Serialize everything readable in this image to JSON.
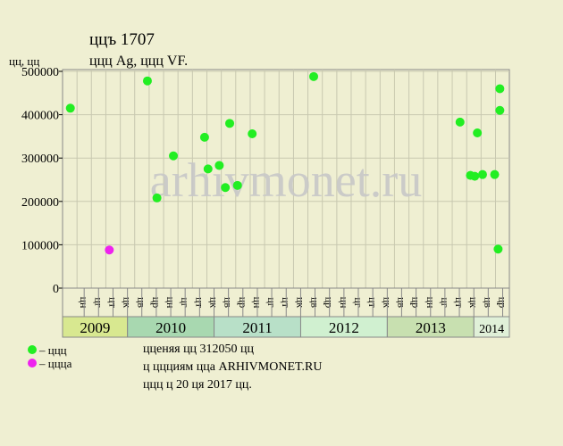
{
  "chart_data": {
    "type": "scatter",
    "title": "ццъ 1707",
    "subtitle": "ццц Ag, ццц VF.",
    "y_label": "цц, цц",
    "watermark": "arhivmonet.ru",
    "notes": [
      "цценяя цц 312050 цц",
      "ц ццциям цца ARHIVMONET.RU",
      "ццц ц 20 ця 2017 цц."
    ],
    "xlim": [
      2009.25,
      2014.41
    ],
    "ylim": [
      0,
      500000
    ],
    "yticks": [
      0,
      100000,
      200000,
      300000,
      400000,
      500000
    ],
    "years": [
      2009,
      2010,
      2011,
      2012,
      2013,
      2014
    ],
    "year_colors": [
      "#d8e890",
      "#a8d8b0",
      "#b8e0c8",
      "#d0f0d0",
      "#c8e0b0",
      "#e0f0d8"
    ],
    "xticks": [
      {
        "value": 2009.417,
        "label": "цн"
      },
      {
        "value": 2009.583,
        "label": "цг"
      },
      {
        "value": 2009.75,
        "label": "цт"
      },
      {
        "value": 2009.917,
        "label": "цк"
      },
      {
        "value": 2010.083,
        "label": "цв"
      },
      {
        "value": 2010.25,
        "label": "цр"
      },
      {
        "value": 2010.417,
        "label": "цн"
      },
      {
        "value": 2010.583,
        "label": "цг"
      },
      {
        "value": 2010.75,
        "label": "цт"
      },
      {
        "value": 2010.917,
        "label": "цк"
      },
      {
        "value": 2011.083,
        "label": "цв"
      },
      {
        "value": 2011.25,
        "label": "цр"
      },
      {
        "value": 2011.417,
        "label": "цн"
      },
      {
        "value": 2011.583,
        "label": "цг"
      },
      {
        "value": 2011.75,
        "label": "цт"
      },
      {
        "value": 2011.917,
        "label": "цк"
      },
      {
        "value": 2012.083,
        "label": "цв"
      },
      {
        "value": 2012.25,
        "label": "цр"
      },
      {
        "value": 2012.417,
        "label": "цн"
      },
      {
        "value": 2012.583,
        "label": "цг"
      },
      {
        "value": 2012.75,
        "label": "цт"
      },
      {
        "value": 2012.917,
        "label": "цк"
      },
      {
        "value": 2013.083,
        "label": "цв"
      },
      {
        "value": 2013.25,
        "label": "цр"
      },
      {
        "value": 2013.417,
        "label": "цн"
      },
      {
        "value": 2013.583,
        "label": "цг"
      },
      {
        "value": 2013.75,
        "label": "цт"
      },
      {
        "value": 2013.917,
        "label": "цк"
      },
      {
        "value": 2014.083,
        "label": "цв"
      },
      {
        "value": 2014.25,
        "label": "цр"
      }
    ],
    "grid": true,
    "series": [
      {
        "name": "– ццц",
        "color": "#22ee22",
        "x": [
          2009.34,
          2010.23,
          2010.34,
          2010.53,
          2010.89,
          2010.93,
          2011.06,
          2011.13,
          2011.18,
          2011.27,
          2011.44,
          2012.15,
          2013.84,
          2013.96,
          2014.01,
          2014.04,
          2014.1,
          2014.24,
          2014.28,
          2014.3,
          2014.3
        ],
        "values": [
          415000,
          478000,
          208000,
          305000,
          348000,
          275000,
          283000,
          232000,
          380000,
          237000,
          356000,
          488000,
          383000,
          260000,
          258000,
          358000,
          262000,
          262000,
          90000,
          460000,
          410000
        ]
      },
      {
        "name": "– ццца",
        "color": "#ee22ee",
        "x": [
          2009.79
        ],
        "values": [
          88000
        ]
      }
    ]
  }
}
